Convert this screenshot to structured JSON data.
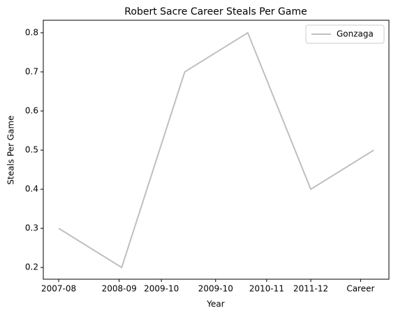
{
  "chart_data": {
    "type": "line",
    "title": "Robert Sacre Career Steals Per Game",
    "xlabel": "Year",
    "ylabel": "Steals Per Game",
    "x": [
      0,
      1,
      2,
      3,
      4,
      5
    ],
    "series": [
      {
        "name": "Gonzaga",
        "color": "#bfbfbf",
        "values": [
          0.3,
          0.2,
          0.7,
          0.8,
          0.4,
          0.5
        ]
      }
    ],
    "xlim": [
      -0.244,
      5.24
    ],
    "xticks": [
      {
        "value": 0,
        "label": "2007-08"
      },
      {
        "value": 0.96,
        "label": "2008-09"
      },
      {
        "value": 1.63,
        "label": "2009-10"
      },
      {
        "value": 2.49,
        "label": "2009-10"
      },
      {
        "value": 3.3,
        "label": "2010-11"
      },
      {
        "value": 4.0,
        "label": "2011-12"
      },
      {
        "value": 4.79,
        "label": "Career"
      }
    ],
    "ylim": [
      0.17,
      0.832
    ],
    "yticks": [
      0.2,
      0.3,
      0.4,
      0.5,
      0.6,
      0.7,
      0.8
    ],
    "legend": "upper right"
  }
}
